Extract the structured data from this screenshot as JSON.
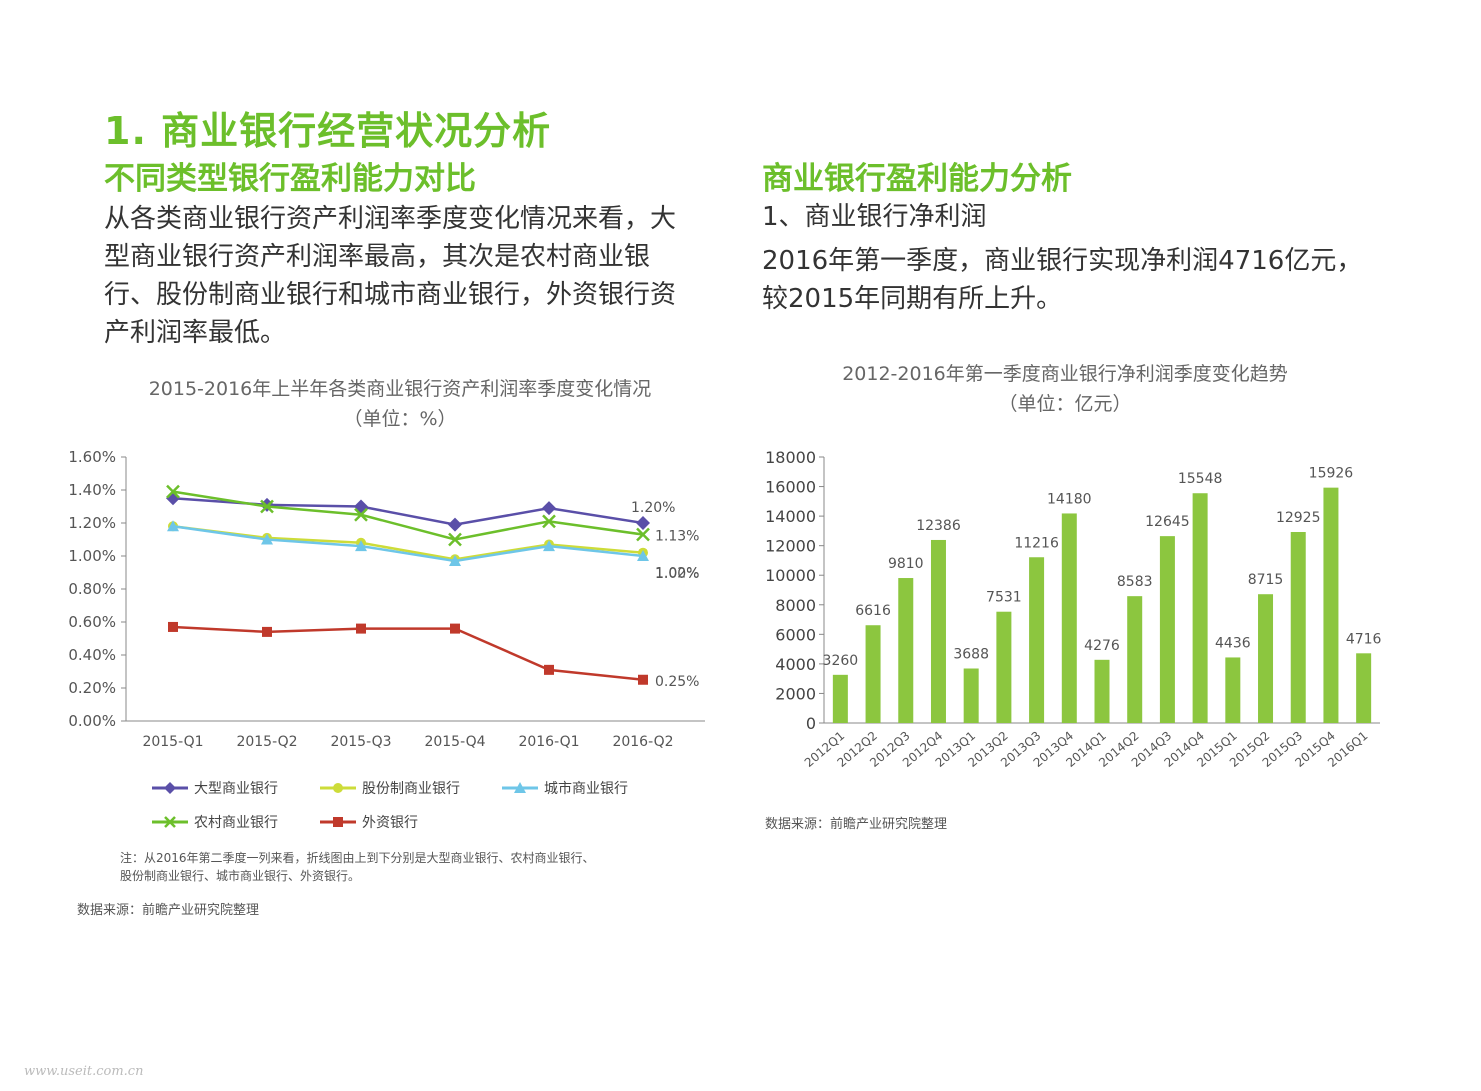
{
  "header": {
    "title": "1. 商业银行经营状况分析",
    "left_subtitle": "不同类型银行盈利能力对比",
    "right_subtitle": "商业银行盈利能力分析"
  },
  "left": {
    "paragraph_lines": [
      "从各类商业银行资产利润率季度变化情况来看，大",
      "型商业银行资产利润率最高，其次是农村商业银",
      "行、股份制商业银行和城市商业银行，外资银行资",
      "产利润率最低。"
    ],
    "chart_title": "2015-2016年上半年各类商业银行资产利润率季度变化情况",
    "chart_unit": "（单位：%）",
    "note_lines": [
      "注：从2016年第二季度一列来看，折线图由上到下分别是大型商业银行、农村商业银行、",
      "股份制商业银行、城市商业银行、外资银行。"
    ],
    "source": "数据来源：前瞻产业研究院整理"
  },
  "right": {
    "section_label": "1、商业银行净利润",
    "paragraph_lines": [
      "2016年第一季度，商业银行实现净利润4716亿元，",
      "较2015年同期有所上升。"
    ],
    "chart_title": "2012-2016年第一季度商业银行净利润季度变化趋势",
    "chart_unit": "（单位：亿元）",
    "source": "数据来源：前瞻产业研究院整理"
  },
  "watermark": "www.useit.com.cn",
  "chart_data": [
    {
      "type": "line",
      "title": "2015-2016年上半年各类商业银行资产利润率季度变化情况",
      "subtitle": "（单位：%）",
      "categories": [
        "2015-Q1",
        "2015-Q2",
        "2015-Q3",
        "2015-Q4",
        "2016-Q1",
        "2016-Q2"
      ],
      "ylim": [
        0,
        1.6
      ],
      "yticks": [
        "0.00%",
        "0.20%",
        "0.40%",
        "0.60%",
        "0.80%",
        "1.00%",
        "1.20%",
        "1.40%",
        "1.60%"
      ],
      "legend_position": "bottom",
      "grid": false,
      "series": [
        {
          "name": "大型商业银行",
          "color": "#5a4fa8",
          "marker": "diamond",
          "values": [
            1.35,
            1.31,
            1.3,
            1.19,
            1.29,
            1.2
          ],
          "end_label": "1.20%"
        },
        {
          "name": "股份制商业银行",
          "color": "#cddc39",
          "marker": "circle",
          "values": [
            1.18,
            1.11,
            1.08,
            0.98,
            1.07,
            1.02
          ],
          "end_label": "1.02%"
        },
        {
          "name": "城市商业银行",
          "color": "#6ec6e8",
          "marker": "triangle",
          "values": [
            1.18,
            1.1,
            1.06,
            0.97,
            1.06,
            1.0
          ],
          "end_label": "1.00%"
        },
        {
          "name": "农村商业银行",
          "color": "#6cbf2b",
          "marker": "x",
          "values": [
            1.39,
            1.3,
            1.25,
            1.1,
            1.21,
            1.13
          ],
          "end_label": "1.13%"
        },
        {
          "name": "外资银行",
          "color": "#c0392b",
          "marker": "square",
          "values": [
            0.57,
            0.54,
            0.56,
            0.56,
            0.31,
            0.25
          ],
          "end_label": "0.25%"
        }
      ]
    },
    {
      "type": "bar",
      "title": "2012-2016年第一季度商业银行净利润季度变化趋势",
      "subtitle": "（单位：亿元）",
      "color": "#8cc63f",
      "categories": [
        "2012Q1",
        "2012Q2",
        "2012Q3",
        "2012Q4",
        "2013Q1",
        "2013Q2",
        "2013Q3",
        "2013Q4",
        "2014Q1",
        "2014Q2",
        "2014Q3",
        "2014Q4",
        "2015Q1",
        "2015Q2",
        "2015Q3",
        "2015Q4",
        "2016Q1"
      ],
      "values": [
        3260,
        6616,
        9810,
        12386,
        3688,
        7531,
        11216,
        14180,
        4276,
        8583,
        12645,
        15548,
        4436,
        8715,
        12925,
        15926,
        4716
      ],
      "ylim": [
        0,
        18000
      ],
      "yticks": [
        "0",
        "2000",
        "4000",
        "6000",
        "8000",
        "10000",
        "12000",
        "14000",
        "16000",
        "18000"
      ],
      "grid": false
    }
  ]
}
